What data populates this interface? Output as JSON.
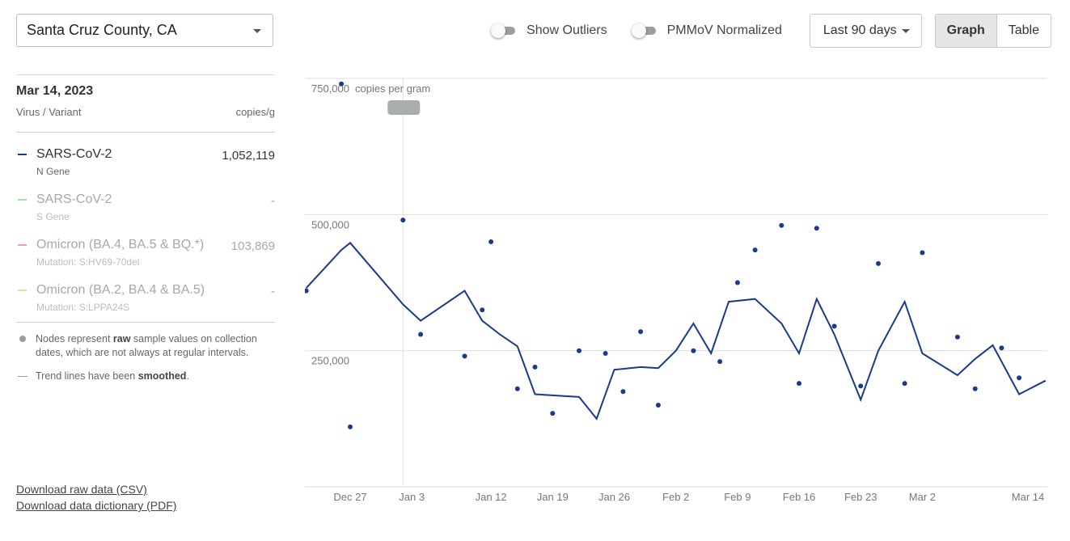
{
  "location": {
    "value": "Santa Cruz County, CA"
  },
  "toolbar": {
    "show_outliers": "Show Outliers",
    "pmmov_normalized": "PMMoV Normalized",
    "range": "Last 90 days",
    "view_graph": "Graph",
    "view_table": "Table"
  },
  "sidebar": {
    "date": "Mar 14, 2023",
    "col_left": "Virus / Variant",
    "col_right": "copies/g",
    "variants": [
      {
        "name": "SARS-CoV-2",
        "sub": "N Gene",
        "value": "1,052,119",
        "color": "#1a3a8c",
        "state": "active"
      },
      {
        "name": "SARS-CoV-2",
        "sub": "S Gene",
        "value": "-",
        "color": "#a8dba8",
        "state": "dim"
      },
      {
        "name": "Omicron (BA.4, BA.5 & BQ.*)",
        "sub": "Mutation: S:HV69-70del",
        "value": "103,869",
        "color": "#e8a0b4",
        "state": "dim"
      },
      {
        "name": "Omicron (BA.2, BA.4 & BA.5)",
        "sub": "Mutation: S:LPPA24S",
        "value": "-",
        "color": "#ead9a0",
        "state": "dim"
      }
    ],
    "note_nodes_a": "Nodes represent ",
    "note_nodes_b": "raw",
    "note_nodes_c": " sample values on collection dates, which are not always at regular intervals.",
    "note_trend_a": "Trend lines have been ",
    "note_trend_b": "smoothed",
    "note_trend_c": "."
  },
  "links": {
    "raw_csv": "Download raw data (CSV)",
    "dictionary_pdf": "Download data dictionary (PDF)"
  },
  "chart_data": {
    "type": "line",
    "ylabel": "copies per gram",
    "ylim": [
      0,
      750000
    ],
    "y_ticks": [
      {
        "value": 250000,
        "label": "250,000"
      },
      {
        "value": 500000,
        "label": "500,000"
      },
      {
        "value": 750000,
        "label": "750,000"
      }
    ],
    "x_ticks": [
      "2022-12-27",
      "2023-01-03",
      "2023-01-12",
      "2023-01-19",
      "2023-01-26",
      "2023-02-02",
      "2023-02-09",
      "2023-02-16",
      "2023-02-23",
      "2023-03-02",
      "2023-03-14"
    ],
    "x_tick_labels": [
      "Dec 27",
      "Jan 3",
      "Jan 12",
      "Jan 19",
      "Jan 26",
      "Feb 2",
      "Feb 9",
      "Feb 16",
      "Feb 23",
      "Mar 2",
      "Mar 14"
    ],
    "line_color": "#1a3a8c",
    "hover_date": "2023-01-02",
    "series": [
      {
        "type": "scatter",
        "points": [
          [
            "2022-12-22",
            360000
          ],
          [
            "2022-12-26",
            740000
          ],
          [
            "2022-12-27",
            110000
          ],
          [
            "2023-01-02",
            490000
          ],
          [
            "2023-01-04",
            280000
          ],
          [
            "2023-01-09",
            240000
          ],
          [
            "2023-01-11",
            325000
          ],
          [
            "2023-01-12",
            450000
          ],
          [
            "2023-01-15",
            180000
          ],
          [
            "2023-01-17",
            220000
          ],
          [
            "2023-01-19",
            135000
          ],
          [
            "2023-01-22",
            250000
          ],
          [
            "2023-01-25",
            245000
          ],
          [
            "2023-01-27",
            175000
          ],
          [
            "2023-01-29",
            285000
          ],
          [
            "2023-01-31",
            150000
          ],
          [
            "2023-02-04",
            250000
          ],
          [
            "2023-02-07",
            230000
          ],
          [
            "2023-02-09",
            375000
          ],
          [
            "2023-02-11",
            435000
          ],
          [
            "2023-02-14",
            480000
          ],
          [
            "2023-02-16",
            190000
          ],
          [
            "2023-02-18",
            475000
          ],
          [
            "2023-02-20",
            295000
          ],
          [
            "2023-02-23",
            185000
          ],
          [
            "2023-02-25",
            410000
          ],
          [
            "2023-02-28",
            190000
          ],
          [
            "2023-03-02",
            430000
          ],
          [
            "2023-03-06",
            275000
          ],
          [
            "2023-03-08",
            180000
          ],
          [
            "2023-03-11",
            255000
          ],
          [
            "2023-03-13",
            200000
          ]
        ]
      },
      {
        "type": "line",
        "points": [
          [
            "2022-12-22",
            365000
          ],
          [
            "2022-12-26",
            435000
          ],
          [
            "2022-12-27",
            448000
          ],
          [
            "2023-01-02",
            335000
          ],
          [
            "2023-01-04",
            305000
          ],
          [
            "2023-01-09",
            360000
          ],
          [
            "2023-01-11",
            305000
          ],
          [
            "2023-01-13",
            280000
          ],
          [
            "2023-01-15",
            258000
          ],
          [
            "2023-01-17",
            170000
          ],
          [
            "2023-01-19",
            168000
          ],
          [
            "2023-01-22",
            165000
          ],
          [
            "2023-01-24",
            125000
          ],
          [
            "2023-01-26",
            215000
          ],
          [
            "2023-01-29",
            220000
          ],
          [
            "2023-01-31",
            218000
          ],
          [
            "2023-02-02",
            250000
          ],
          [
            "2023-02-04",
            300000
          ],
          [
            "2023-02-06",
            245000
          ],
          [
            "2023-02-08",
            340000
          ],
          [
            "2023-02-11",
            345000
          ],
          [
            "2023-02-14",
            300000
          ],
          [
            "2023-02-16",
            245000
          ],
          [
            "2023-02-18",
            345000
          ],
          [
            "2023-02-20",
            280000
          ],
          [
            "2023-02-23",
            160000
          ],
          [
            "2023-02-25",
            250000
          ],
          [
            "2023-02-28",
            340000
          ],
          [
            "2023-03-02",
            245000
          ],
          [
            "2023-03-06",
            205000
          ],
          [
            "2023-03-08",
            235000
          ],
          [
            "2023-03-10",
            260000
          ],
          [
            "2023-03-13",
            170000
          ],
          [
            "2023-03-16",
            195000
          ]
        ]
      }
    ]
  }
}
